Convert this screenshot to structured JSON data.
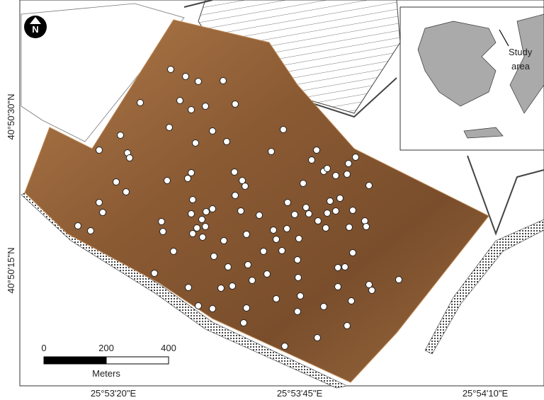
{
  "map": {
    "latitude_labels": [
      "40°50'30\"N",
      "40°50'15\"N"
    ],
    "longitude_labels": [
      "25°53'20\"E",
      "25°53'45\"E",
      "25°54'10\"E"
    ],
    "north_arrow": "N",
    "scale_bar": {
      "ticks": [
        0,
        200,
        400
      ],
      "unit": "Meters"
    },
    "inset": {
      "label_lines": [
        "Study",
        "area"
      ]
    }
  }
}
